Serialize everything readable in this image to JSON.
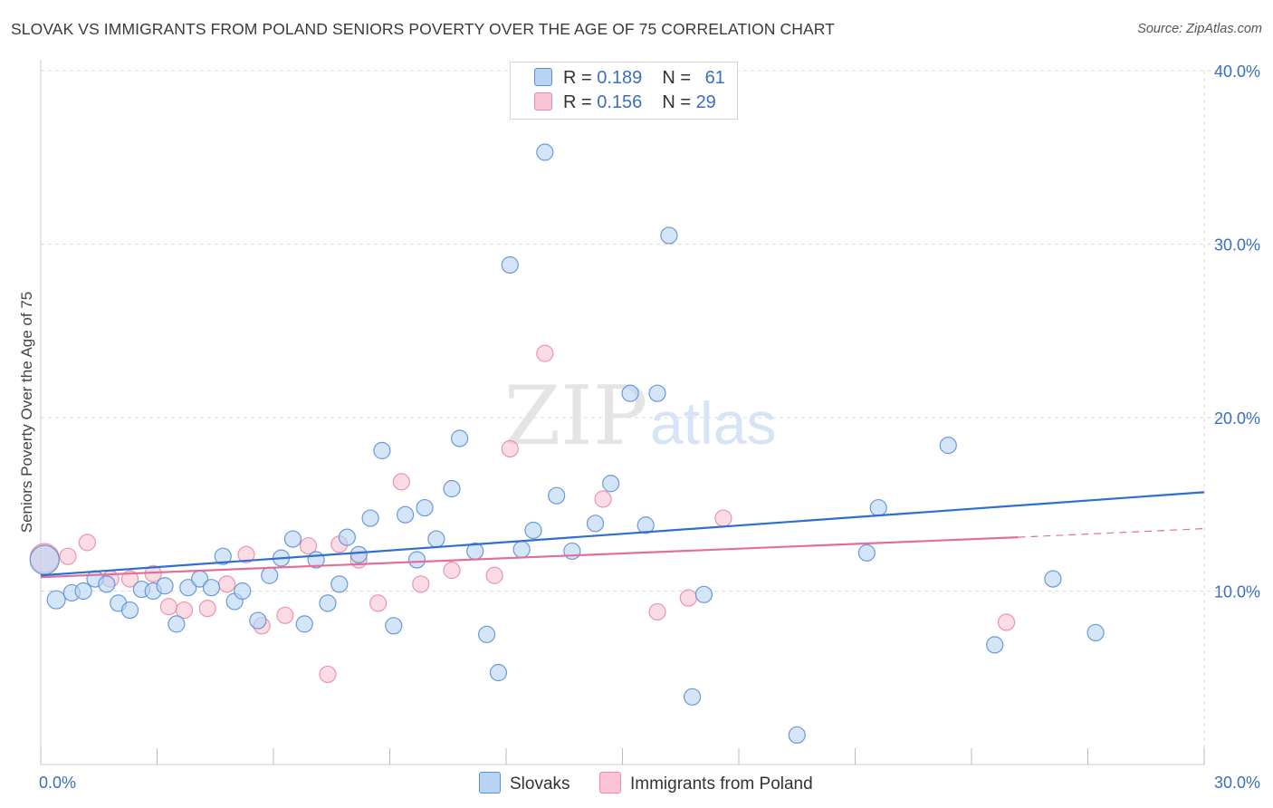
{
  "title": "SLOVAK VS IMMIGRANTS FROM POLAND SENIORS POVERTY OVER THE AGE OF 75 CORRELATION CHART",
  "source": "Source: ZipAtlas.com",
  "watermark": {
    "zip": "ZIP",
    "atlas": "atlas"
  },
  "colors": {
    "slovak_fill": "#b9d3f3",
    "slovak_stroke": "#5b8fd6",
    "slovak_line": "#2f6fd0",
    "poland_fill": "#f8c4d4",
    "poland_stroke": "#e98aa8",
    "poland_line": "#e0709a",
    "grid": "#d9d9d9",
    "tick_label": "#3a6fc4"
  },
  "legend": {
    "rows": [
      {
        "r_label": "R = ",
        "r_value": "0.189",
        "n_label": "N = ",
        "n_value": "61"
      },
      {
        "r_label": "R = ",
        "r_value": "0.156",
        "n_label": "N = ",
        "n_value": "29"
      }
    ],
    "series": [
      "Slovaks",
      "Immigrants from Poland"
    ]
  },
  "chart_data": {
    "type": "scatter",
    "title": "SLOVAK VS IMMIGRANTS FROM POLAND SENIORS POVERTY OVER THE AGE OF 75 CORRELATION CHART",
    "xlabel": "",
    "ylabel": "Seniors Poverty Over the Age of 75",
    "xlim": [
      0,
      30
    ],
    "ylim": [
      0,
      40
    ],
    "x_ticks": [
      "0.0%",
      "30.0%"
    ],
    "y_ticks": [
      {
        "value": 10,
        "label": "10.0%"
      },
      {
        "value": 20,
        "label": "20.0%"
      },
      {
        "value": 30,
        "label": "30.0%"
      },
      {
        "value": 40,
        "label": "40.0%"
      }
    ],
    "grid": true,
    "legend_position": "top-center",
    "series": [
      {
        "name": "Slovaks",
        "r": 0.189,
        "n": 61,
        "trend": {
          "x": [
            0,
            30
          ],
          "y": [
            10.9,
            15.7
          ]
        },
        "points": [
          [
            0.1,
            11.8,
            16
          ],
          [
            0.4,
            9.5,
            10
          ],
          [
            0.8,
            9.9,
            9
          ],
          [
            1.1,
            10.0,
            9
          ],
          [
            1.4,
            10.7,
            9
          ],
          [
            1.7,
            10.4,
            9
          ],
          [
            2.0,
            9.3,
            9
          ],
          [
            2.3,
            8.9,
            9
          ],
          [
            2.6,
            10.1,
            9
          ],
          [
            2.9,
            10.0,
            9
          ],
          [
            3.2,
            10.3,
            9
          ],
          [
            3.5,
            8.1,
            9
          ],
          [
            3.8,
            10.2,
            9
          ],
          [
            4.1,
            10.7,
            9
          ],
          [
            4.4,
            10.2,
            9
          ],
          [
            4.7,
            12.0,
            9
          ],
          [
            5.0,
            9.4,
            9
          ],
          [
            5.2,
            10.0,
            9
          ],
          [
            5.6,
            8.3,
            9
          ],
          [
            5.9,
            10.9,
            9
          ],
          [
            6.2,
            11.9,
            9
          ],
          [
            6.5,
            13.0,
            9
          ],
          [
            6.8,
            8.1,
            9
          ],
          [
            7.1,
            11.8,
            9
          ],
          [
            7.4,
            9.3,
            9
          ],
          [
            7.7,
            10.4,
            9
          ],
          [
            7.9,
            13.1,
            9
          ],
          [
            8.2,
            12.1,
            9
          ],
          [
            8.5,
            14.2,
            9
          ],
          [
            8.8,
            18.1,
            9
          ],
          [
            9.1,
            8.0,
            9
          ],
          [
            9.4,
            14.4,
            9
          ],
          [
            9.7,
            11.8,
            9
          ],
          [
            9.9,
            14.8,
            9
          ],
          [
            10.2,
            13.0,
            9
          ],
          [
            10.6,
            15.9,
            9
          ],
          [
            10.8,
            18.8,
            9
          ],
          [
            11.2,
            12.3,
            9
          ],
          [
            11.5,
            7.5,
            9
          ],
          [
            11.8,
            5.3,
            9
          ],
          [
            12.1,
            28.8,
            9
          ],
          [
            12.4,
            12.4,
            9
          ],
          [
            12.7,
            13.5,
            9
          ],
          [
            13.0,
            35.3,
            9
          ],
          [
            13.3,
            15.5,
            9
          ],
          [
            13.7,
            12.3,
            9
          ],
          [
            14.3,
            13.9,
            9
          ],
          [
            14.7,
            16.2,
            9
          ],
          [
            15.2,
            21.4,
            9
          ],
          [
            15.6,
            13.8,
            9
          ],
          [
            15.9,
            21.4,
            9
          ],
          [
            16.2,
            30.5,
            9
          ],
          [
            16.8,
            3.9,
            9
          ],
          [
            17.1,
            9.8,
            9
          ],
          [
            19.5,
            1.7,
            9
          ],
          [
            21.3,
            12.2,
            9
          ],
          [
            21.6,
            14.8,
            9
          ],
          [
            23.4,
            18.4,
            9
          ],
          [
            24.6,
            6.9,
            9
          ],
          [
            26.1,
            10.7,
            9
          ],
          [
            27.2,
            7.6,
            9
          ]
        ]
      },
      {
        "name": "Immigrants from Poland",
        "r": 0.156,
        "n": 29,
        "trend": {
          "x": [
            0,
            25.2
          ],
          "y": [
            10.8,
            13.1
          ]
        },
        "trend_dashed": {
          "x": [
            25.2,
            30
          ],
          "y": [
            13.1,
            13.6
          ]
        },
        "points": [
          [
            0.1,
            11.9,
            16
          ],
          [
            0.7,
            12.0,
            9
          ],
          [
            1.2,
            12.8,
            9
          ],
          [
            1.8,
            10.7,
            9
          ],
          [
            2.3,
            10.7,
            9
          ],
          [
            2.9,
            11.0,
            9
          ],
          [
            3.3,
            9.1,
            9
          ],
          [
            3.7,
            8.9,
            9
          ],
          [
            4.3,
            9.0,
            9
          ],
          [
            4.8,
            10.4,
            9
          ],
          [
            5.3,
            12.1,
            9
          ],
          [
            5.7,
            8.0,
            9
          ],
          [
            6.3,
            8.6,
            9
          ],
          [
            6.9,
            12.6,
            9
          ],
          [
            7.4,
            5.2,
            9
          ],
          [
            7.7,
            12.7,
            9
          ],
          [
            8.2,
            11.8,
            9
          ],
          [
            8.7,
            9.3,
            9
          ],
          [
            9.3,
            16.3,
            9
          ],
          [
            9.8,
            10.4,
            9
          ],
          [
            10.6,
            11.2,
            9
          ],
          [
            11.7,
            10.9,
            9
          ],
          [
            12.1,
            18.2,
            9
          ],
          [
            13.0,
            23.7,
            9
          ],
          [
            14.5,
            15.3,
            9
          ],
          [
            15.9,
            8.8,
            9
          ],
          [
            16.7,
            9.6,
            9
          ],
          [
            17.6,
            14.2,
            9
          ],
          [
            24.9,
            8.2,
            9
          ]
        ]
      }
    ]
  }
}
